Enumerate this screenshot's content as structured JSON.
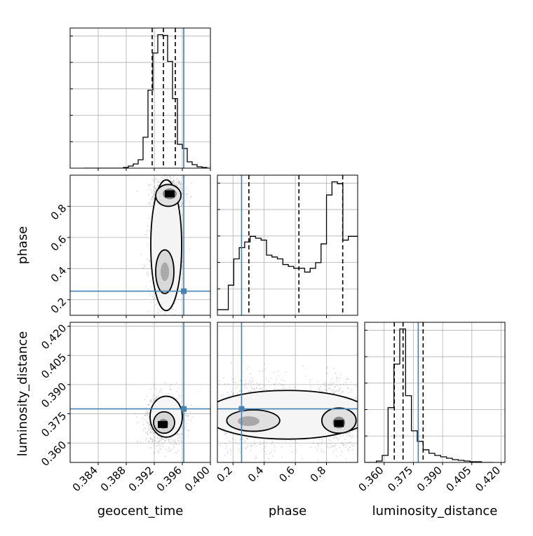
{
  "truth_color": "#4682b4",
  "chart_data": {
    "type": "corner",
    "parameters": [
      "geocent_time",
      "phase",
      "luminosity_distance"
    ],
    "truths": {
      "geocent_time": 0.3962,
      "phase": 0.255,
      "luminosity_distance": 0.3775
    },
    "quantiles": {
      "geocent_time": [
        0.3917,
        0.3933,
        0.395
      ],
      "phase": [
        0.302,
        0.623,
        0.904
      ],
      "luminosity_distance": [
        0.3652,
        0.3697,
        0.38
      ]
    },
    "ranges": {
      "geocent_time": [
        0.38,
        0.4
      ],
      "phase": [
        0.1,
        1.0
      ],
      "luminosity_distance": [
        0.35,
        0.422
      ]
    },
    "ticks": {
      "geocent_time": [
        "0.384",
        "0.388",
        "0.392",
        "0.396",
        "0.400"
      ],
      "phase": [
        "0.2",
        "0.4",
        "0.6",
        "0.8"
      ],
      "luminosity_distance": [
        "0.360",
        "0.375",
        "0.390",
        "0.405",
        "0.420"
      ]
    },
    "hist_1d": {
      "geocent_time": {
        "edges": [
          0.382,
          0.3827,
          0.3834,
          0.3841,
          0.3848,
          0.3855,
          0.3862,
          0.3869,
          0.3876,
          0.3883,
          0.389,
          0.3897,
          0.3904,
          0.3911,
          0.3918,
          0.3925,
          0.3932,
          0.3939,
          0.3946,
          0.3953,
          0.396,
          0.3967,
          0.3974,
          0.3981,
          0.3988,
          0.3995,
          0.4
        ],
        "counts": [
          0,
          0,
          0,
          0,
          0,
          0,
          0,
          0,
          1,
          3,
          6,
          12,
          44,
          111,
          164,
          190,
          189,
          152,
          99,
          34,
          28,
          9,
          5,
          2,
          1,
          0
        ]
      },
      "phase": {
        "edges": [
          0.1,
          0.135,
          0.17,
          0.205,
          0.24,
          0.275,
          0.31,
          0.345,
          0.38,
          0.415,
          0.45,
          0.485,
          0.52,
          0.555,
          0.59,
          0.625,
          0.66,
          0.695,
          0.73,
          0.765,
          0.8,
          0.835,
          0.87,
          0.905,
          0.94,
          0.975,
          1.0
        ],
        "counts": [
          3,
          3,
          16,
          30,
          36,
          39,
          42,
          41,
          40,
          32,
          31,
          30,
          27,
          26,
          25,
          25,
          23,
          25,
          28,
          38,
          64,
          71,
          70,
          40,
          42,
          42
        ]
      },
      "luminosity_distance": {
        "edges": [
          0.35,
          0.353,
          0.356,
          0.359,
          0.362,
          0.365,
          0.368,
          0.371,
          0.374,
          0.377,
          0.38,
          0.383,
          0.386,
          0.389,
          0.392,
          0.395,
          0.398,
          0.401,
          0.404,
          0.407,
          0.41,
          0.413,
          0.416
        ],
        "counts": [
          0,
          0,
          2,
          10,
          78,
          140,
          190,
          95,
          45,
          30,
          18,
          13,
          10,
          8,
          6,
          4,
          3,
          2,
          1,
          1,
          0,
          0
        ]
      }
    },
    "contours_2d": {
      "phase_vs_geocent_time": {
        "modes": [
          [
            0.3942,
            0.88
          ],
          [
            0.3935,
            0.38
          ]
        ]
      },
      "luminosity_distance_vs_geocent_time": {
        "modes": [
          [
            0.3932,
            0.3695
          ]
        ]
      },
      "luminosity_distance_vs_phase": {
        "modes": [
          [
            0.3,
            0.371
          ],
          [
            0.88,
            0.37
          ]
        ]
      }
    }
  }
}
